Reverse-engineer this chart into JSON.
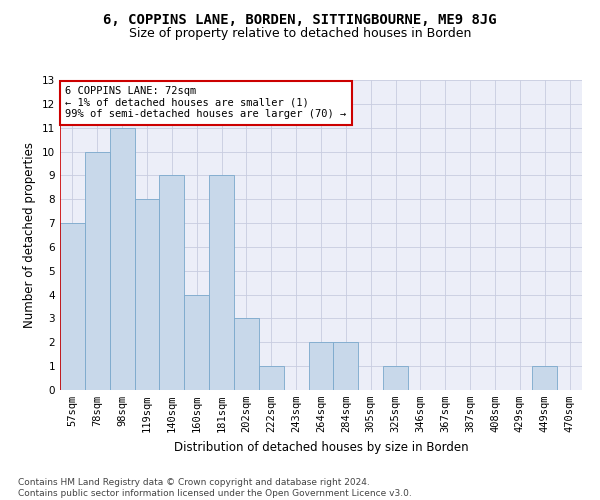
{
  "title1": "6, COPPINS LANE, BORDEN, SITTINGBOURNE, ME9 8JG",
  "title2": "Size of property relative to detached houses in Borden",
  "xlabel": "Distribution of detached houses by size in Borden",
  "ylabel": "Number of detached properties",
  "categories": [
    "57sqm",
    "78sqm",
    "98sqm",
    "119sqm",
    "140sqm",
    "160sqm",
    "181sqm",
    "202sqm",
    "222sqm",
    "243sqm",
    "264sqm",
    "284sqm",
    "305sqm",
    "325sqm",
    "346sqm",
    "367sqm",
    "387sqm",
    "408sqm",
    "429sqm",
    "449sqm",
    "470sqm"
  ],
  "values": [
    7,
    10,
    11,
    8,
    9,
    4,
    9,
    3,
    1,
    0,
    2,
    2,
    0,
    1,
    0,
    0,
    0,
    0,
    0,
    1,
    0
  ],
  "bar_color": "#c8d8ea",
  "bar_edge_color": "#7aa8cc",
  "vline_color": "#cc0000",
  "annotation_text": "6 COPPINS LANE: 72sqm\n← 1% of detached houses are smaller (1)\n99% of semi-detached houses are larger (70) →",
  "annotation_box_color": "#ffffff",
  "annotation_box_edge_color": "#cc0000",
  "ylim": [
    0,
    13
  ],
  "yticks": [
    0,
    1,
    2,
    3,
    4,
    5,
    6,
    7,
    8,
    9,
    10,
    11,
    12,
    13
  ],
  "grid_color": "#c8cce0",
  "bg_color": "#eceef8",
  "footer": "Contains HM Land Registry data © Crown copyright and database right 2024.\nContains public sector information licensed under the Open Government Licence v3.0.",
  "title1_fontsize": 10,
  "title2_fontsize": 9,
  "xlabel_fontsize": 8.5,
  "ylabel_fontsize": 8.5,
  "tick_fontsize": 7.5,
  "footer_fontsize": 6.5,
  "annot_fontsize": 7.5
}
